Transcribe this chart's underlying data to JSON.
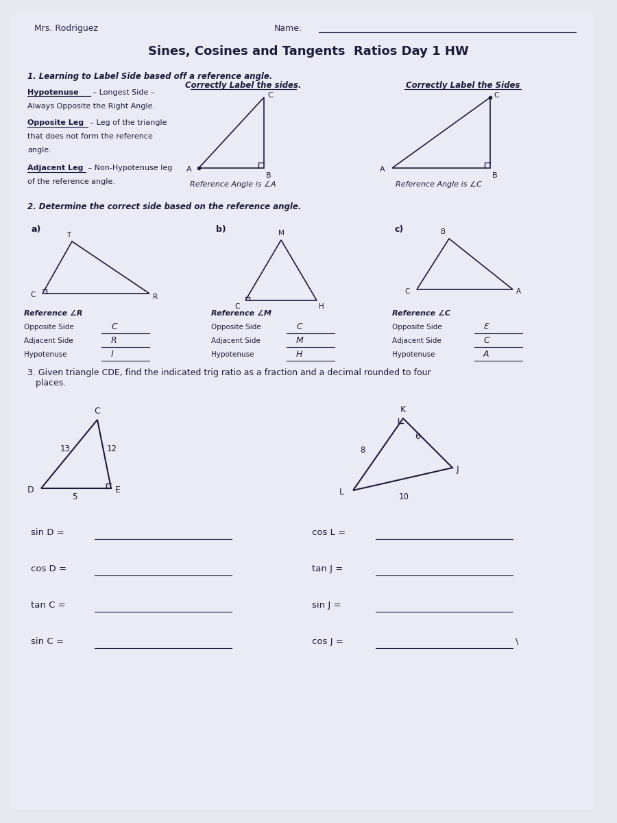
{
  "bg_color": "#e8e8f0",
  "paper_color": "#ebebf5",
  "title": "Sines, Cosines and Tangents  Ratios Day 1 HW",
  "teacher": "Mrs. Rodriguez",
  "name_label": "Name:",
  "section1_title": "1. Learning to Label Side based off a reference angle.",
  "correctly_label1": "Correctly Label the sides.",
  "correctly_label2": "Correctly Label the Sides",
  "ref_angle_A": "Reference Angle is ∠A",
  "ref_angle_C": "Reference Angle is ∠C",
  "section2_title": "2. Determine the correct side based on the reference angle.",
  "ref_R": "Reference ∠R",
  "ref_M": "Reference ∠M",
  "ref_C2": "Reference ∠C",
  "opp_side": "Opposite Side",
  "adj_side": "Adjacent Side",
  "hyp": "Hypotenuse",
  "ans_R_opp": "C",
  "ans_R_adj": "R",
  "ans_R_hyp": "I",
  "ans_M_opp": "C",
  "ans_M_adj": "M",
  "ans_M_hyp": "H",
  "ans_C_opp": "Ɛ",
  "ans_C_adj": "C",
  "ans_C_hyp": "A",
  "section3_title": "3. Given triangle CDE, find the indicated trig ratio as a fraction and a decimal rounded to four\n   places.",
  "sinD": "sin D =",
  "cosD": "cos D =",
  "tanC": "tan C =",
  "sinC": "sin C =",
  "cosL": "cos L =",
  "tanJ": "tan J =",
  "sinJ": "sin J =",
  "cosJ": "cos J ="
}
